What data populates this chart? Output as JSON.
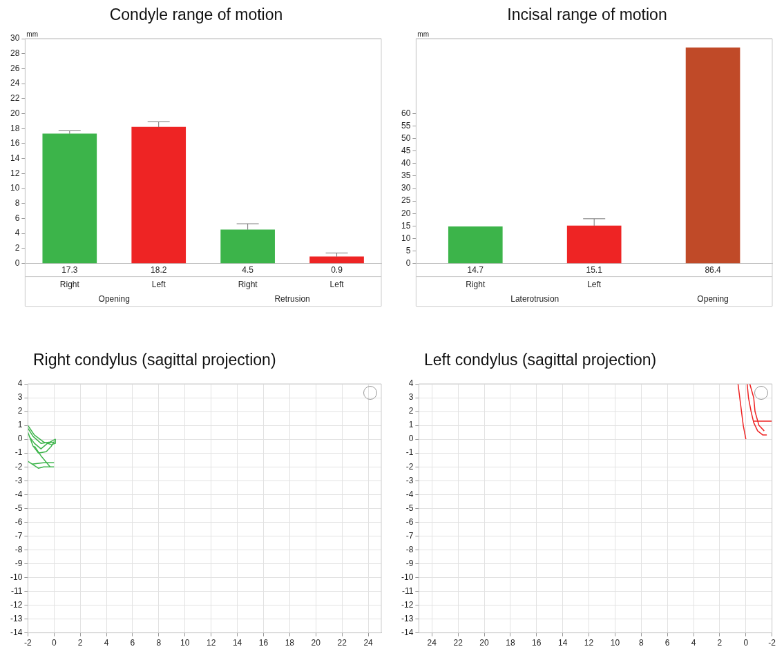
{
  "chart_data": [
    {
      "type": "bar",
      "title": "Condyle range of motion",
      "ylabel": "mm",
      "categories": [
        "Right",
        "Left",
        "Right",
        "Left"
      ],
      "values": [
        17.3,
        18.2,
        4.5,
        0.9
      ],
      "colors": [
        "#3cb44a",
        "#ee2424",
        "#3cb44a",
        "#ee2424"
      ],
      "errors": [
        [
          17.3,
          17.7
        ],
        [
          18.2,
          18.9
        ],
        [
          4.5,
          5.3
        ],
        [
          0.9,
          1.4
        ]
      ],
      "data_labels": true,
      "annotations": [
        "Opening",
        "Retrusion"
      ],
      "ylim": [
        0,
        30
      ],
      "yticks": [
        0,
        2,
        4,
        6,
        8,
        10,
        12,
        14,
        16,
        18,
        20,
        22,
        24,
        26,
        28,
        30
      ]
    },
    {
      "type": "bar",
      "title": "Incisal range of motion",
      "ylabel": "mm",
      "categories": [
        "Right",
        "Left",
        null
      ],
      "values": [
        14.7,
        15.1,
        86.4
      ],
      "colors": [
        "#3cb44a",
        "#ee2424",
        "#c04a28"
      ],
      "errors": [
        null,
        [
          15.1,
          17.9
        ],
        null
      ],
      "data_labels": true,
      "annotations": [
        "Laterotrusion",
        "Opening"
      ],
      "ylim": [
        0,
        90
      ],
      "yticks": [
        0,
        5,
        10,
        15,
        20,
        25,
        30,
        35,
        40,
        45,
        50,
        55,
        60
      ]
    },
    {
      "type": "line",
      "title": "Right condylus (sagittal projection)",
      "marker": "none",
      "grid": true,
      "xlim": [
        -2,
        25
      ],
      "xticks": [
        -2,
        0,
        2,
        4,
        6,
        8,
        10,
        12,
        14,
        16,
        18,
        20,
        22,
        24
      ],
      "ylim": [
        -14,
        4
      ],
      "yticks": [
        -14,
        -13,
        -12,
        -11,
        -10,
        -9,
        -8,
        -7,
        -6,
        -5,
        -4,
        -3,
        -2,
        -1,
        0,
        1,
        2,
        3,
        4
      ],
      "series": [
        {
          "color": "#3cb44a",
          "x": [
            -2,
            -1.5,
            -0.8,
            -0.2,
            0.1,
            0.1,
            -0.3,
            -1,
            -1.6,
            -2
          ],
          "values": [
            1,
            0.3,
            -0.2,
            -0.4,
            -0.3,
            0,
            -0.2,
            -0.3,
            0.2,
            0.8
          ]
        },
        {
          "color": "#3cb44a",
          "x": [
            -2,
            -1.6,
            -1.2,
            -0.6,
            -0.2,
            0,
            -0.5,
            -1,
            -1.5,
            -1.9
          ],
          "values": [
            0.5,
            -0.5,
            -1,
            -0.9,
            -0.5,
            -0.2,
            -0.3,
            -0.7,
            -0.3,
            0.2
          ]
        },
        {
          "color": "#3cb44a",
          "x": [
            -1.5,
            -1,
            -0.3
          ],
          "values": [
            -0.5,
            -1.2,
            -2
          ]
        },
        {
          "color": "#3cb44a",
          "x": [
            -1.7,
            -0.8,
            0
          ],
          "values": [
            -1.8,
            -1.7,
            -1.7
          ]
        },
        {
          "color": "#3cb44a",
          "x": [
            -2,
            -1.2,
            -0.8,
            0
          ],
          "values": [
            -1.6,
            -2.1,
            -2,
            -2
          ]
        }
      ]
    },
    {
      "type": "line",
      "title": "Left condylus (sagittal projection)",
      "marker": "none",
      "grid": true,
      "xlim": [
        25,
        -2
      ],
      "xticks": [
        24,
        22,
        20,
        18,
        16,
        14,
        12,
        10,
        8,
        6,
        4,
        2,
        0,
        -2
      ],
      "ylim": [
        -14,
        4
      ],
      "yticks": [
        -14,
        -13,
        -12,
        -11,
        -10,
        -9,
        -8,
        -7,
        -6,
        -5,
        -4,
        -3,
        -2,
        -1,
        0,
        1,
        2,
        3,
        4
      ],
      "series": [
        {
          "color": "#ee2424",
          "x": [
            0.6,
            0.4,
            0.2,
            0
          ],
          "values": [
            4,
            2.5,
            1,
            0
          ]
        },
        {
          "color": "#ee2424",
          "x": [
            -0.1,
            -0.2,
            -0.4,
            -0.6,
            -0.9,
            -1.3,
            -1.6
          ],
          "values": [
            4,
            3,
            2,
            1.2,
            0.6,
            0.3,
            0.3
          ]
        },
        {
          "color": "#ee2424",
          "x": [
            -0.3,
            -0.6,
            -0.7,
            -1,
            -1.4
          ],
          "values": [
            4,
            3,
            2,
            1,
            0.6
          ]
        },
        {
          "color": "#ee2424",
          "x": [
            -0.6,
            -2
          ],
          "values": [
            1.3,
            1.3
          ]
        }
      ]
    }
  ]
}
